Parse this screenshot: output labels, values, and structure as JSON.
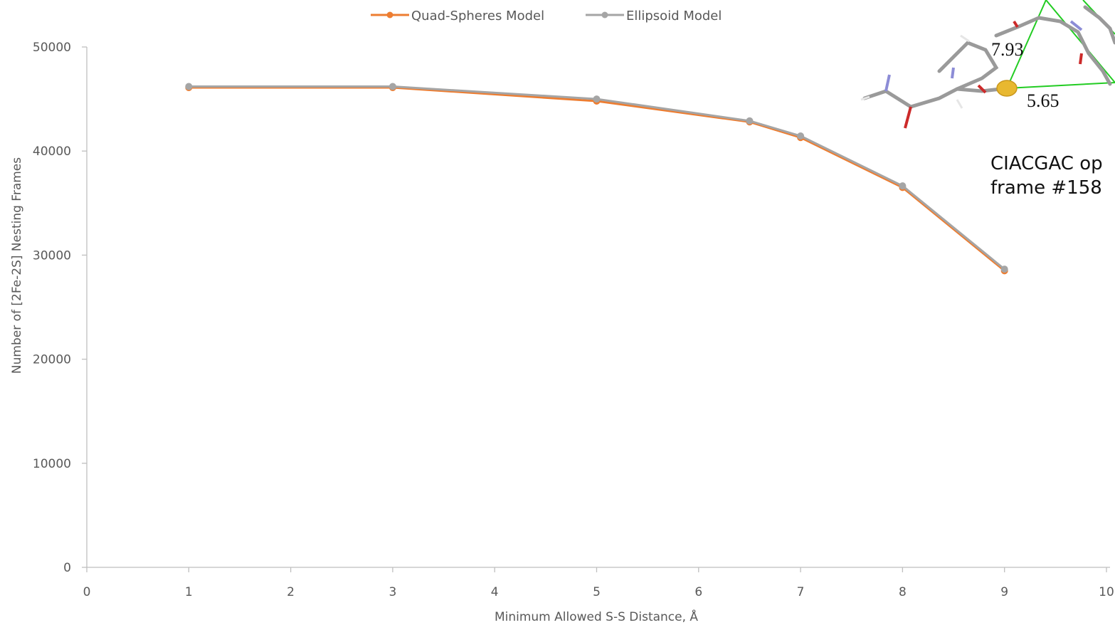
{
  "chart_data": {
    "type": "line",
    "title": "",
    "xlabel": "Minimum Allowed S-S Distance, Å",
    "ylabel": "Number of [2Fe-2S] Nesting Frames",
    "xlim": [
      0,
      10
    ],
    "ylim": [
      0,
      50000
    ],
    "x_ticks": [
      "0",
      "1",
      "2",
      "3",
      "4",
      "5",
      "6",
      "7",
      "8",
      "9",
      "10"
    ],
    "y_ticks": [
      "0",
      "10000",
      "20000",
      "30000",
      "40000",
      "50000"
    ],
    "grid": false,
    "legend_position": "top",
    "series": [
      {
        "name": "Quad-Spheres Model",
        "color": "#ED7D31",
        "x": [
          1,
          3,
          5,
          6.5,
          7,
          8,
          9
        ],
        "values": [
          46100,
          46100,
          44800,
          42800,
          41300,
          36500,
          28500
        ]
      },
      {
        "name": "Ellipsoid Model",
        "color": "#A5A5A5",
        "x": [
          1,
          3,
          5,
          6.5,
          7,
          8,
          9
        ],
        "values": [
          46200,
          46200,
          45000,
          42900,
          41450,
          36650,
          28650
        ]
      }
    ]
  },
  "inset": {
    "distance_labels": [
      "7.93",
      "5.65"
    ],
    "caption_line1": "CIACGAC op",
    "caption_line2": "frame #158"
  }
}
